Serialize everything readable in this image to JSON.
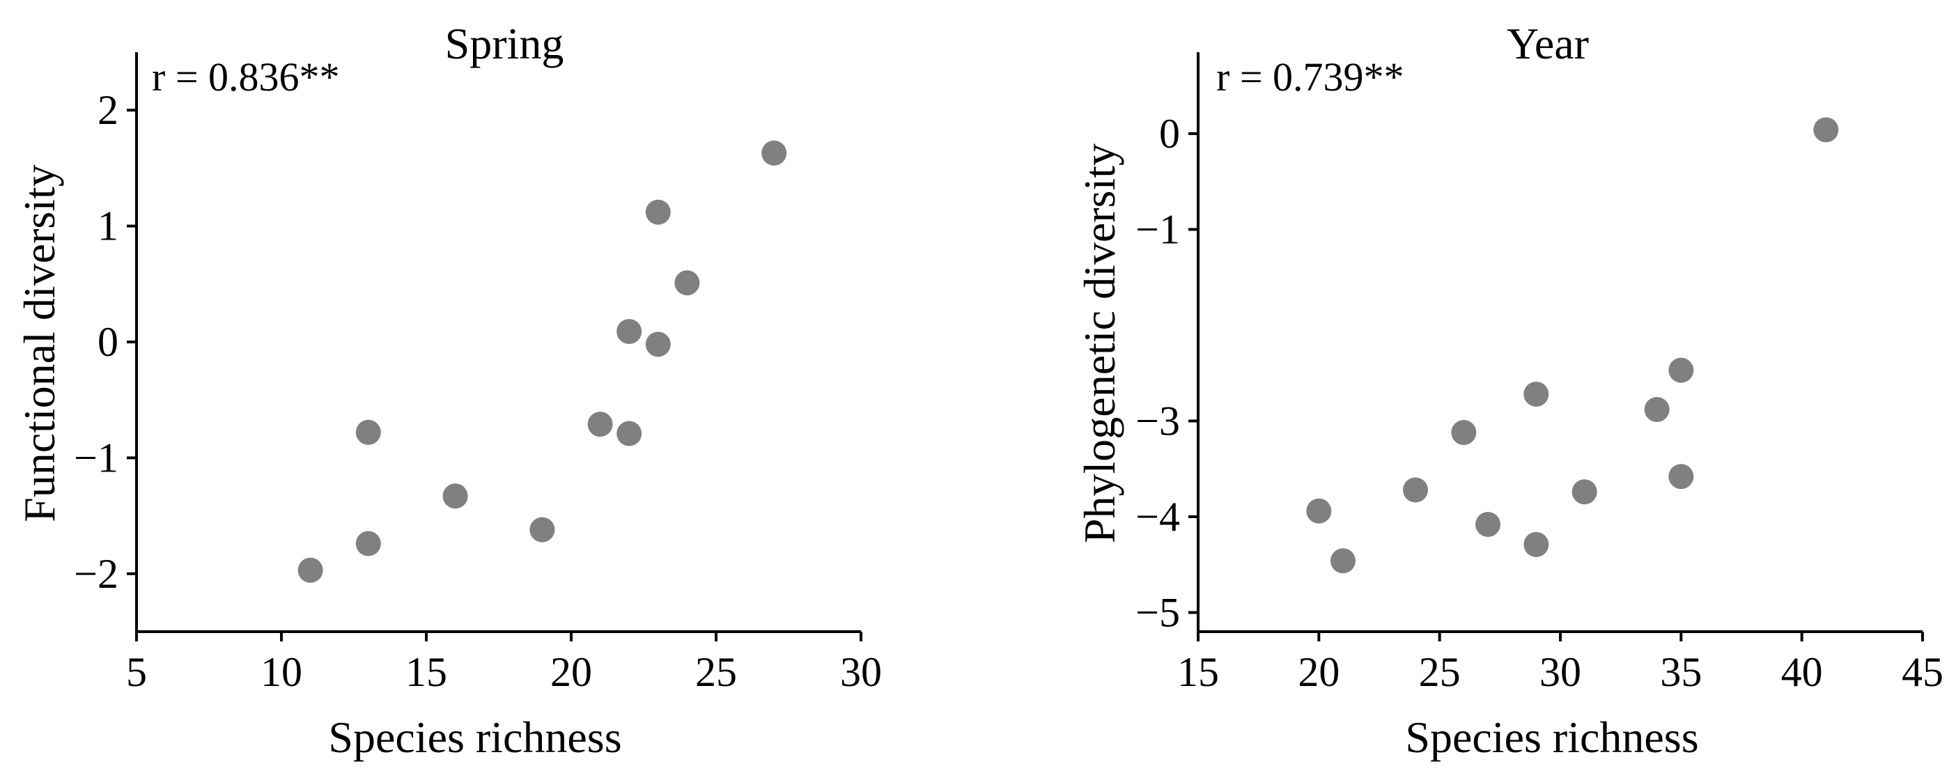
{
  "chart_data": [
    {
      "type": "scatter",
      "title": "Spring",
      "annotation": "r = 0.836**",
      "xlabel": "Species richness",
      "ylabel": "Functional diversity",
      "xlim": [
        5,
        30
      ],
      "ylim": [
        -2.5,
        2.5
      ],
      "xticks": [
        5,
        10,
        15,
        20,
        25,
        30
      ],
      "yticks": [
        -2,
        -1,
        0,
        1,
        2
      ],
      "xtick_labels": [
        "5",
        "10",
        "15",
        "20",
        "25",
        "30"
      ],
      "ytick_labels": [
        "−2",
        "−1",
        "0",
        "1",
        "2"
      ],
      "grid": false,
      "marker_color": "#808080",
      "series": [
        {
          "points": [
            {
              "x": 11,
              "y": -1.97
            },
            {
              "x": 13,
              "y": -0.78
            },
            {
              "x": 13,
              "y": -1.74
            },
            {
              "x": 16,
              "y": -1.33
            },
            {
              "x": 19,
              "y": -1.62
            },
            {
              "x": 21,
              "y": -0.71
            },
            {
              "x": 22,
              "y": 0.09
            },
            {
              "x": 22,
              "y": -0.79
            },
            {
              "x": 23,
              "y": 1.12
            },
            {
              "x": 23,
              "y": -0.02
            },
            {
              "x": 24,
              "y": 0.51
            },
            {
              "x": 27,
              "y": 1.63
            }
          ]
        }
      ]
    },
    {
      "type": "scatter",
      "title": "Year",
      "annotation": "r = 0.739**",
      "xlabel": "Species richness",
      "ylabel": "Phylogenetic diversity",
      "xlim": [
        15,
        45
      ],
      "ylim": [
        -5.2,
        0.85
      ],
      "xticks": [
        15,
        20,
        25,
        30,
        35,
        40,
        45
      ],
      "yticks": [
        -5,
        -4,
        -3,
        -1,
        0
      ],
      "xtick_labels": [
        "15",
        "20",
        "25",
        "30",
        "35",
        "40",
        "45"
      ],
      "ytick_labels": [
        "−5",
        "−4",
        "−3",
        "−1",
        "0"
      ],
      "grid": false,
      "marker_color": "#808080",
      "series": [
        {
          "points": [
            {
              "x": 20,
              "y": -3.94
            },
            {
              "x": 21,
              "y": -4.46
            },
            {
              "x": 24,
              "y": -3.72
            },
            {
              "x": 26,
              "y": -3.12
            },
            {
              "x": 27,
              "y": -4.08
            },
            {
              "x": 29,
              "y": -2.72
            },
            {
              "x": 29,
              "y": -4.29
            },
            {
              "x": 31,
              "y": -3.74
            },
            {
              "x": 34,
              "y": -2.88
            },
            {
              "x": 35,
              "y": -2.47
            },
            {
              "x": 35,
              "y": -3.58
            },
            {
              "x": 41,
              "y": 0.04
            }
          ]
        }
      ]
    }
  ]
}
